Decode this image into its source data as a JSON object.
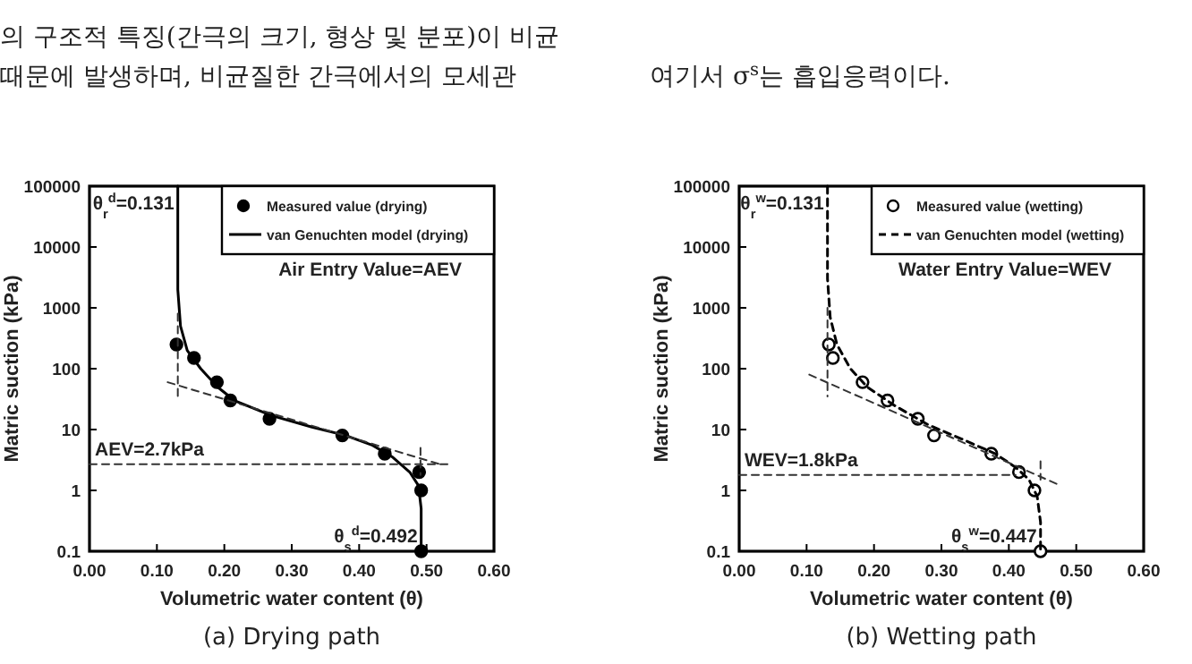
{
  "chart_data": [
    {
      "type": "scatter",
      "title": "(a) Drying path",
      "xlabel": "Volumetric water content (θ)",
      "ylabel": "Matric suction (kPa)",
      "log": "y",
      "grid": false,
      "legend": "top right",
      "xlim": [
        0,
        0.6
      ],
      "ylim": [
        0.1,
        100000
      ],
      "xticks": [
        {
          "value": 0,
          "label": "0.00"
        },
        {
          "value": 0.1,
          "label": "0.10"
        },
        {
          "value": 0.2,
          "label": "0.20"
        },
        {
          "value": 0.3,
          "label": "0.30"
        },
        {
          "value": 0.4,
          "label": "0.40"
        },
        {
          "value": 0.5,
          "label": "0.50"
        },
        {
          "value": 0.6,
          "label": "0.60"
        }
      ],
      "yticks": [
        0.1,
        1,
        10,
        100,
        1000,
        10000,
        100000
      ],
      "series": [
        {
          "name": "Measured value (drying)",
          "color": "#000000",
          "marker": "circle",
          "x": [
            0.129,
            0.155,
            0.189,
            0.209,
            0.267,
            0.375,
            0.438,
            0.489,
            0.492,
            0.492
          ],
          "values": [
            250,
            150,
            60,
            30,
            15,
            8,
            4,
            2,
            1,
            0.1
          ]
        },
        {
          "type": "line",
          "name": "van Genuchten model (drying)",
          "color": "#000000",
          "line_style": "solid",
          "x": [
            0.131,
            0.131,
            0.135,
            0.145,
            0.165,
            0.19,
            0.215,
            0.27,
            0.33,
            0.38,
            0.42,
            0.45,
            0.475,
            0.488,
            0.492,
            0.492
          ],
          "values": [
            100000,
            2000,
            500,
            200,
            100,
            50,
            30,
            17,
            11,
            8,
            5.5,
            3.5,
            2,
            1.2,
            0.5,
            0.1
          ]
        },
        {
          "type": "line",
          "color": "#333333",
          "line_style": "dashed",
          "x": [
            0.131,
            0.131
          ],
          "values": [
            800,
            35
          ]
        },
        {
          "type": "line",
          "color": "#333333",
          "line_style": "dashed",
          "x": [
            0.116,
            0.524
          ],
          "values": [
            60,
            2.6
          ]
        },
        {
          "type": "line",
          "color": "#333333",
          "line_style": "dashed",
          "x": [
            0,
            0.533
          ],
          "values": [
            2.7,
            2.7
          ]
        },
        {
          "type": "line",
          "color": "#333333",
          "line_style": "dashed",
          "x": [
            0.491,
            0.491
          ],
          "values": [
            5,
            1.8
          ]
        }
      ],
      "annotations": [
        "의 구조적 특징(간극의 크기, 형상 및 분포)이 비균",
        "때문에 발생하며, 비균질한 간극에서의 모세관",
        {
          "text": "θ$_{r}$$^{d}$=0.131",
          "x": 0.131,
          "y": 100000
        },
        {
          "text": "AEV=2.7kPa",
          "x": 0,
          "y": 2.7
        },
        {
          "text": "θ$_{s}$$^{d}$=0.492",
          "x": 0.492,
          "y": 0.1
        },
        "Air Entry Value=AEV"
      ]
    },
    {
      "type": "scatter",
      "title": "(b) Wetting path",
      "xlabel": "Volumetric water content (θ)",
      "ylabel": "Matric suction (kPa)",
      "log": "y",
      "grid": false,
      "legend": "top right",
      "xlim": [
        0,
        0.6
      ],
      "ylim": [
        0.1,
        100000
      ],
      "xticks": [
        {
          "value": 0,
          "label": "0.00"
        },
        {
          "value": 0.1,
          "label": "0.10"
        },
        {
          "value": 0.2,
          "label": "0.20"
        },
        {
          "value": 0.3,
          "label": "0.30"
        },
        {
          "value": 0.4,
          "label": "0.40"
        },
        {
          "value": 0.5,
          "label": "0.50"
        },
        {
          "value": 0.6,
          "label": "0.60"
        }
      ],
      "yticks": [
        0.1,
        1,
        10,
        100,
        1000,
        10000,
        100000
      ],
      "series": [
        {
          "name": "Measured value (wetting)",
          "color": "#ffffff",
          "marker": "circle",
          "x": [
            0.133,
            0.139,
            0.183,
            0.22,
            0.265,
            0.289,
            0.374,
            0.415,
            0.438,
            0.447
          ],
          "values": [
            250,
            150,
            60,
            30,
            15,
            8,
            4,
            2,
            1,
            0.1
          ]
        },
        {
          "type": "line",
          "name": "van Genuchten model (wetting)",
          "color": "#000000",
          "line_style": "dashed",
          "x": [
            0.131,
            0.131,
            0.135,
            0.145,
            0.165,
            0.19,
            0.23,
            0.28,
            0.33,
            0.38,
            0.41,
            0.43,
            0.442,
            0.447,
            0.447
          ],
          "values": [
            100000,
            3000,
            700,
            250,
            100,
            50,
            25,
            12,
            7,
            4,
            2.4,
            1.5,
            0.8,
            0.3,
            0.1
          ]
        },
        {
          "type": "line",
          "color": "#333333",
          "line_style": "dashed",
          "x": [
            0.131,
            0.131
          ],
          "values": [
            1000,
            35
          ]
        },
        {
          "type": "line",
          "color": "#333333",
          "line_style": "dashed",
          "x": [
            0.104,
            0.473
          ],
          "values": [
            80,
            1.25
          ]
        },
        {
          "type": "line",
          "color": "#333333",
          "line_style": "dashed",
          "x": [
            0,
            0.41
          ],
          "values": [
            1.8,
            1.8
          ]
        },
        {
          "type": "line",
          "color": "#333333",
          "line_style": "dashed",
          "x": [
            0.447,
            0.447
          ],
          "values": [
            3,
            1.5
          ]
        }
      ],
      "annotations": [
        "여기서 σ$^{s}$는 흡입응력이다.",
        {
          "text": "θ$_{r}$$^{w}$=0.131",
          "x": 0.131,
          "y": 100000
        },
        {
          "text": "WEV=1.8kPa",
          "x": 0,
          "y": 1.8
        },
        {
          "text": "θ$_{s}$$^{w}$=0.447",
          "x": 0.447,
          "y": 0.1
        },
        "Water Entry Value=WEV"
      ]
    }
  ]
}
